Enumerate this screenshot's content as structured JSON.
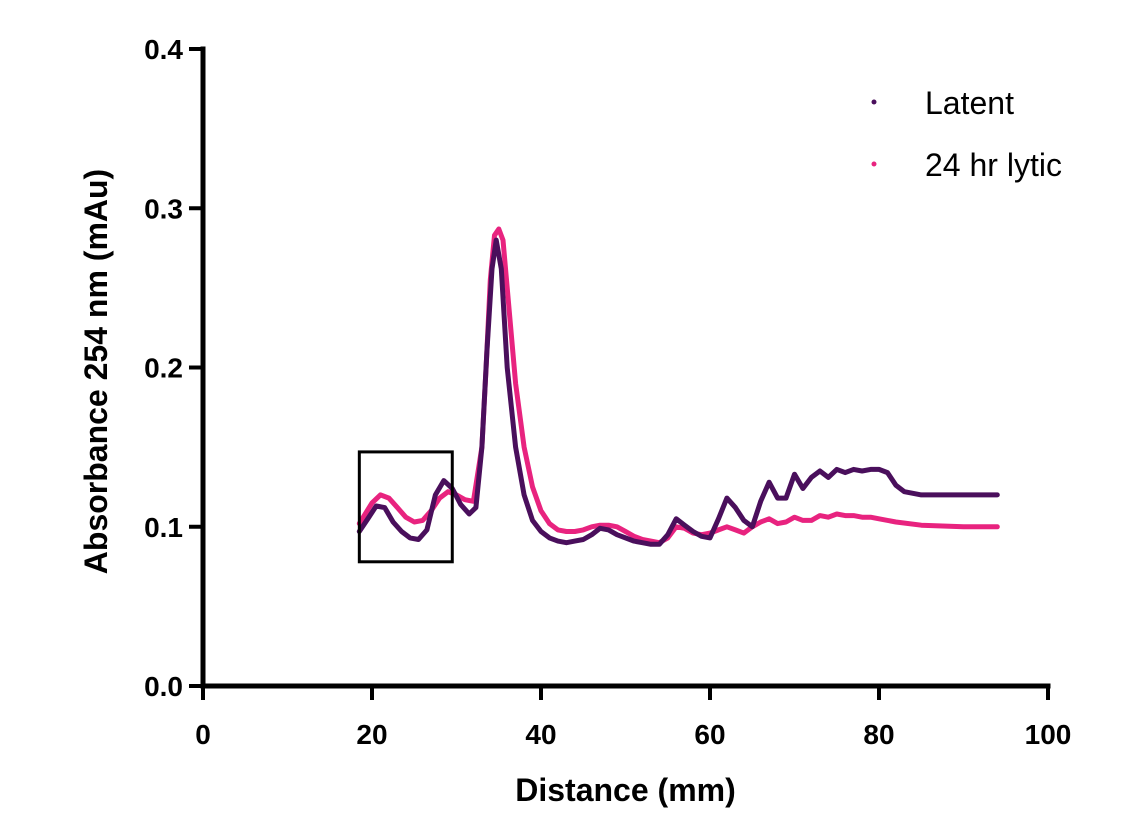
{
  "chart_data": {
    "type": "line",
    "title": "",
    "xlabel": "Distance (mm)",
    "ylabel": "Absorbance 254 nm (mAu)",
    "xlim": [
      0,
      100
    ],
    "ylim": [
      0.0,
      0.4
    ],
    "x_ticks": [
      0,
      20,
      40,
      60,
      80,
      100
    ],
    "x_tick_labels": [
      "0",
      "20",
      "40",
      "60",
      "80",
      "100"
    ],
    "y_ticks": [
      0.0,
      0.1,
      0.2,
      0.3,
      0.4
    ],
    "y_tick_labels": [
      "0.0",
      "0.1",
      "0.2",
      "0.3",
      "0.4"
    ],
    "grid": false,
    "legend_position": "top-right",
    "highlight_region": {
      "x": [
        18.5,
        29.5
      ],
      "y": [
        0.078,
        0.147
      ]
    },
    "series": [
      {
        "name": "24 hr lytic",
        "color": "#e8237f",
        "x": [
          18.5,
          20,
          21,
          22,
          23,
          24,
          25,
          26,
          27,
          28,
          29,
          30,
          31,
          32,
          33,
          33.5,
          34,
          34.5,
          35,
          35.5,
          36,
          37,
          38,
          39,
          40,
          41,
          42,
          43,
          44,
          45,
          46,
          47,
          48,
          49,
          50,
          51,
          52,
          53,
          54,
          55,
          56,
          57,
          58,
          59,
          60,
          61,
          62,
          63,
          64,
          65,
          66,
          67,
          68,
          69,
          70,
          71,
          72,
          73,
          74,
          75,
          76,
          77,
          78,
          79,
          80,
          82,
          85,
          90,
          94
        ],
        "y": [
          0.102,
          0.115,
          0.12,
          0.118,
          0.112,
          0.106,
          0.103,
          0.104,
          0.11,
          0.118,
          0.122,
          0.12,
          0.117,
          0.116,
          0.15,
          0.2,
          0.255,
          0.283,
          0.287,
          0.28,
          0.25,
          0.19,
          0.15,
          0.125,
          0.11,
          0.102,
          0.098,
          0.097,
          0.097,
          0.098,
          0.1,
          0.101,
          0.101,
          0.1,
          0.097,
          0.094,
          0.092,
          0.091,
          0.09,
          0.093,
          0.1,
          0.099,
          0.096,
          0.095,
          0.096,
          0.098,
          0.1,
          0.098,
          0.096,
          0.1,
          0.103,
          0.105,
          0.102,
          0.103,
          0.106,
          0.104,
          0.104,
          0.107,
          0.106,
          0.108,
          0.107,
          0.107,
          0.106,
          0.106,
          0.105,
          0.103,
          0.101,
          0.1,
          0.1
        ]
      },
      {
        "name": "Latent",
        "color": "#4a0f5c",
        "x": [
          18.5,
          19.5,
          20.5,
          21.5,
          22.5,
          23.5,
          24.5,
          25.5,
          26.5,
          27.5,
          28.5,
          29.5,
          30.5,
          31.5,
          32.3,
          33,
          33.6,
          34.2,
          34.7,
          35.3,
          36,
          37,
          38,
          39,
          40,
          41,
          42,
          43,
          44,
          45,
          46,
          47,
          48,
          49,
          50,
          51,
          52,
          53,
          54,
          55,
          56,
          57,
          58,
          59,
          60,
          61,
          62,
          63,
          64,
          65,
          66,
          67,
          68,
          69,
          70,
          71,
          72,
          73,
          74,
          75,
          76,
          77,
          78,
          79,
          80,
          81,
          82,
          83,
          85,
          88,
          94
        ],
        "y": [
          0.097,
          0.105,
          0.113,
          0.112,
          0.103,
          0.097,
          0.093,
          0.092,
          0.098,
          0.12,
          0.129,
          0.124,
          0.114,
          0.108,
          0.112,
          0.15,
          0.21,
          0.262,
          0.28,
          0.262,
          0.2,
          0.15,
          0.12,
          0.104,
          0.097,
          0.093,
          0.091,
          0.09,
          0.091,
          0.092,
          0.095,
          0.099,
          0.098,
          0.095,
          0.093,
          0.091,
          0.09,
          0.089,
          0.089,
          0.095,
          0.105,
          0.101,
          0.097,
          0.094,
          0.093,
          0.105,
          0.118,
          0.112,
          0.104,
          0.1,
          0.116,
          0.128,
          0.118,
          0.118,
          0.133,
          0.124,
          0.131,
          0.135,
          0.131,
          0.136,
          0.134,
          0.136,
          0.135,
          0.136,
          0.136,
          0.134,
          0.126,
          0.122,
          0.12,
          0.12,
          0.12
        ]
      }
    ]
  }
}
